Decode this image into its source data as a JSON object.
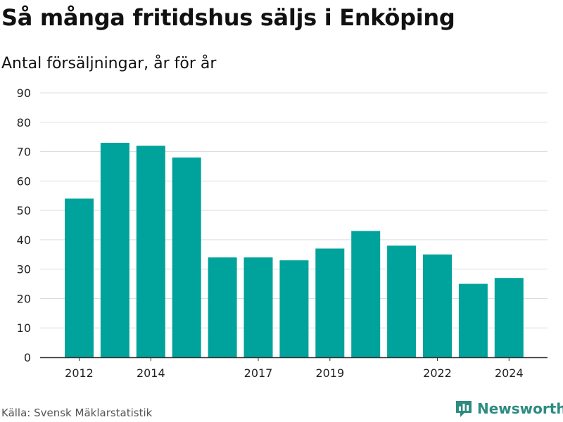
{
  "title": "Så många fritidshus säljs i Enköping",
  "subtitle": "Antal försäljningar, år för år",
  "source": "Källa: Svensk Mäklarstatistik",
  "brand": "Newsworthy",
  "colors": {
    "bar": "#00a39b",
    "brand": "#2e8b80",
    "grid": "#dddddd",
    "axis": "#333333"
  },
  "chart_data": {
    "type": "bar",
    "categories": [
      "2012",
      "2013",
      "2014",
      "2015",
      "2016",
      "2017",
      "2018",
      "2019",
      "2020",
      "2021",
      "2022",
      "2023",
      "2024"
    ],
    "values": [
      54,
      73,
      72,
      68,
      34,
      34,
      33,
      37,
      43,
      38,
      35,
      25,
      27
    ],
    "x_tick_labels": [
      "2012",
      "2014",
      "2017",
      "2019",
      "2022",
      "2024"
    ],
    "y_ticks": [
      0,
      10,
      20,
      30,
      40,
      50,
      60,
      70,
      80,
      90
    ],
    "ylim": [
      0,
      90
    ],
    "grid": true
  }
}
